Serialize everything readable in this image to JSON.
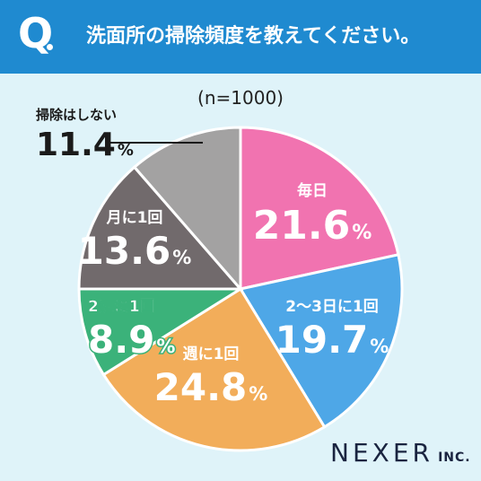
{
  "header": {
    "q_label": "Q",
    "question": "洗面所の掃除頻度を教えてください。"
  },
  "brand": {
    "main": "NEXER",
    "suffix": "INC."
  },
  "chart_data": {
    "type": "pie",
    "subtitle": "(n=1000)",
    "unit": "%",
    "slices": [
      {
        "label": "毎日",
        "value": 21.6,
        "color": "#f173b0"
      },
      {
        "label": "2〜3日に1回",
        "value": 19.7,
        "color": "#4ea7e7"
      },
      {
        "label": "週に1回",
        "value": 24.8,
        "color": "#f2ad5a"
      },
      {
        "label": "2週に1回",
        "value": 8.9,
        "color": "#3bb27a"
      },
      {
        "label": "月に1回",
        "value": 13.6,
        "color": "#716a6c"
      },
      {
        "label": "掃除はしない",
        "value": 11.4,
        "color": "#a3a2a2"
      }
    ]
  }
}
